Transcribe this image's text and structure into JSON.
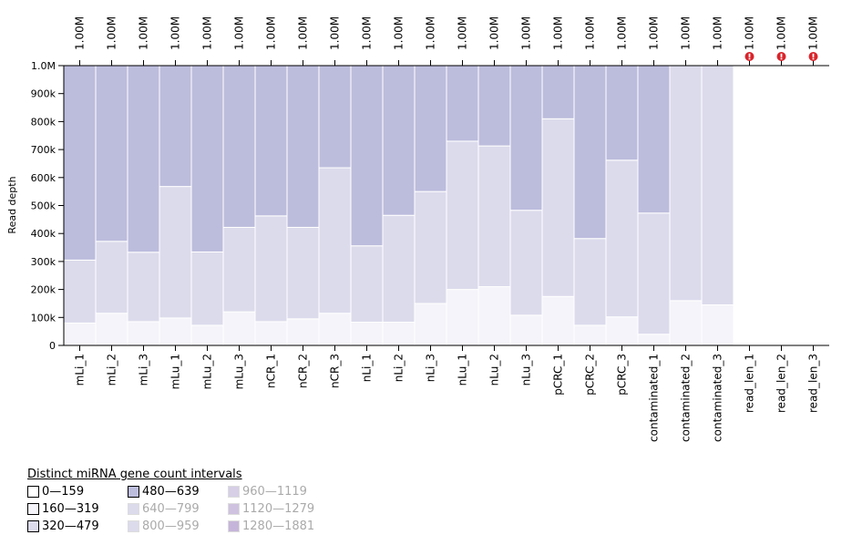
{
  "chart_data": {
    "type": "bar",
    "stacked": true,
    "ylabel": "Read depth",
    "ylim": [
      0,
      1000000
    ],
    "y_ticks": [
      "0",
      "100k",
      "200k",
      "300k",
      "400k",
      "500k",
      "600k",
      "700k",
      "800k",
      "900k",
      "1.0M"
    ],
    "categories": [
      "mLi_1",
      "mLi_2",
      "mLi_3",
      "mLu_1",
      "mLu_2",
      "mLu_3",
      "nCR_1",
      "nCR_2",
      "nCR_3",
      "nLi_1",
      "nLi_2",
      "nLi_3",
      "nLu_1",
      "nLu_2",
      "nLu_3",
      "pCRC_1",
      "pCRC_2",
      "pCRC_3",
      "contaminated_1",
      "contaminated_2",
      "contaminated_3",
      "read_len_1",
      "read_len_2",
      "read_len_3"
    ],
    "top_labels": [
      "1.00M",
      "1.00M",
      "1.00M",
      "1.00M",
      "1.00M",
      "1.00M",
      "1.00M",
      "1.00M",
      "1.00M",
      "1.00M",
      "1.00M",
      "1.00M",
      "1.00M",
      "1.00M",
      "1.00M",
      "1.00M",
      "1.00M",
      "1.00M",
      "1.00M",
      "1.00M",
      "1.00M",
      "1.00M",
      "1.00M",
      "1.00M"
    ],
    "warnings": [
      false,
      false,
      false,
      false,
      false,
      false,
      false,
      false,
      false,
      false,
      false,
      false,
      false,
      false,
      false,
      false,
      false,
      false,
      false,
      false,
      false,
      true,
      true,
      true
    ],
    "series": [
      {
        "name": "0—159",
        "color": "#ffffff",
        "values": [
          0,
          0,
          0,
          0,
          0,
          0,
          0,
          0,
          0,
          0,
          0,
          0,
          0,
          0,
          0,
          0,
          0,
          0,
          0,
          0,
          0,
          1000000,
          1000000,
          1000000
        ]
      },
      {
        "name": "160—319",
        "color": "#f5f4fa",
        "values": [
          80000,
          115000,
          85000,
          98000,
          72000,
          120000,
          85000,
          95000,
          115000,
          83000,
          83000,
          150000,
          200000,
          210000,
          108000,
          175000,
          72000,
          102000,
          40000,
          160000,
          145000,
          0,
          0,
          0
        ]
      },
      {
        "name": "320—479",
        "color": "#dcdbec",
        "values": [
          225000,
          257000,
          248000,
          470000,
          262000,
          302000,
          378000,
          327000,
          520000,
          273000,
          382000,
          400000,
          530000,
          503000,
          375000,
          635000,
          310000,
          560000,
          433000,
          840000,
          855000,
          0,
          0,
          0
        ]
      },
      {
        "name": "480—639",
        "color": "#bcbcdd",
        "values": [
          695000,
          628000,
          667000,
          432000,
          666000,
          578000,
          537000,
          578000,
          365000,
          644000,
          535000,
          450000,
          270000,
          287000,
          517000,
          190000,
          618000,
          338000,
          527000,
          0,
          0,
          0,
          0,
          0
        ]
      }
    ],
    "legend": {
      "title": "Distinct miRNA gene count intervals",
      "items": [
        {
          "label": "0—159",
          "color": "#ffffff",
          "active": true
        },
        {
          "label": "160—319",
          "color": "#f5f4fa",
          "active": true
        },
        {
          "label": "320—479",
          "color": "#dcdbec",
          "active": true
        },
        {
          "label": "480—639",
          "color": "#bcbcdd",
          "active": true
        },
        {
          "label": "640—799",
          "color": "#dcdbec",
          "active": false
        },
        {
          "label": "800—959",
          "color": "#dcdbec",
          "active": false
        },
        {
          "label": "960—1119",
          "color": "#d6cfe6",
          "active": false
        },
        {
          "label": "1120—1279",
          "color": "#cfc2e0",
          "active": false
        },
        {
          "label": "1280—1881",
          "color": "#c6b5da",
          "active": false
        }
      ]
    }
  }
}
